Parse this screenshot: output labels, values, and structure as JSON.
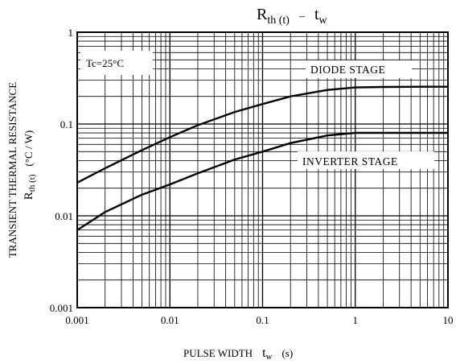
{
  "chart_data": {
    "type": "line",
    "title": {
      "main": "R",
      "main_sub": "th (t)",
      "dash": "–",
      "right": "t",
      "right_sub": "w"
    },
    "xlabel": {
      "main": "PULSE WIDTH",
      "sym": "t",
      "sym_sub": "w",
      "unit": "(s)"
    },
    "ylabel": {
      "line1": "TRANSIENT THERMAL RESISTANCE",
      "sym": "R",
      "sym_sub": "th (t)",
      "unit": "(°C / W)"
    },
    "x_scale": "log",
    "y_scale": "log",
    "xlim": [
      0.001,
      10
    ],
    "ylim": [
      0.001,
      1
    ],
    "x_ticks": [
      "0.001",
      "0.01",
      "0.1",
      "1",
      "10"
    ],
    "y_ticks": [
      "0.001",
      "0.01",
      "0.1",
      "1"
    ],
    "grid": true,
    "condition_label": "Tc=25°C",
    "series": [
      {
        "name": "DIODE STAGE",
        "x": [
          0.001,
          0.002,
          0.005,
          0.01,
          0.02,
          0.05,
          0.1,
          0.2,
          0.5,
          1,
          2,
          5,
          10
        ],
        "y": [
          0.023,
          0.033,
          0.052,
          0.072,
          0.097,
          0.135,
          0.165,
          0.2,
          0.235,
          0.25,
          0.253,
          0.255,
          0.255
        ]
      },
      {
        "name": "INVERTER STAGE",
        "x": [
          0.001,
          0.002,
          0.005,
          0.01,
          0.02,
          0.05,
          0.1,
          0.2,
          0.5,
          1,
          2,
          5,
          10
        ],
        "y": [
          0.007,
          0.011,
          0.017,
          0.022,
          0.029,
          0.041,
          0.05,
          0.062,
          0.075,
          0.08,
          0.08,
          0.08,
          0.08
        ]
      }
    ]
  }
}
